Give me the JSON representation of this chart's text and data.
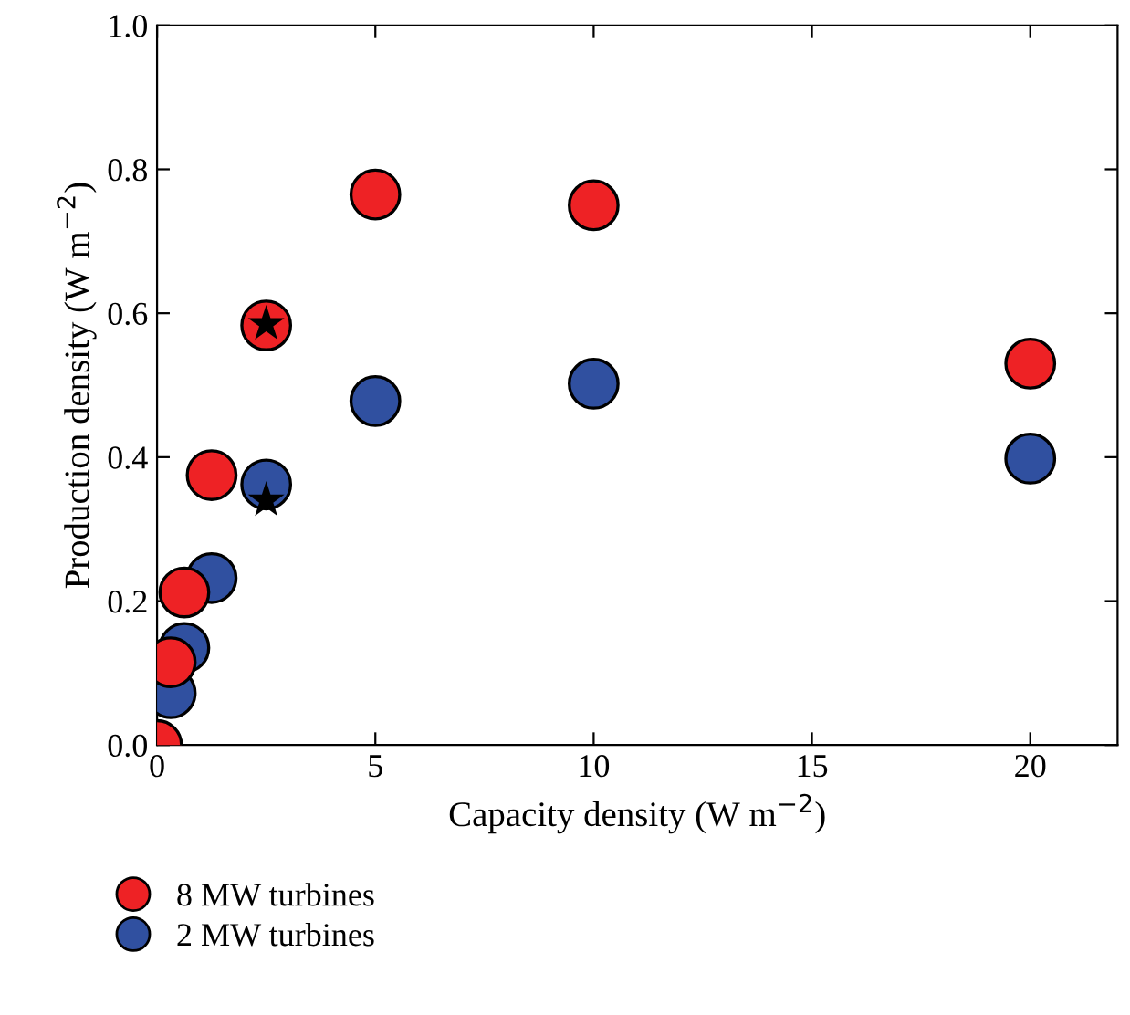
{
  "chart_data": {
    "type": "scatter",
    "xlabel": "Capacity density (W m$^{−2}$)",
    "ylabel": "Production density (W m$^{−2}$)",
    "xlim": [
      0,
      22
    ],
    "xticks": [
      0,
      5,
      10,
      15,
      20
    ],
    "ylim": [
      0,
      1.0
    ],
    "yticks": [
      {
        "value": 0,
        "label": "0.0"
      },
      {
        "value": 0.2,
        "label": "0.2"
      },
      {
        "value": 0.4,
        "label": "0.4"
      },
      {
        "value": 0.6,
        "label": "0.6"
      },
      {
        "value": 0.8,
        "label": "0.8"
      },
      {
        "value": 1.0,
        "label": "1.0"
      }
    ],
    "marker": "circle",
    "legend": "bottom left",
    "grid": false,
    "series": [
      {
        "name": "2 MW turbines",
        "color": "#3050a0",
        "x": [
          0.3125,
          0.625,
          1.25,
          2.5,
          5,
          10,
          20
        ],
        "values": [
          0.072,
          0.135,
          0.232,
          0.362,
          0.478,
          0.502,
          0.398
        ]
      },
      {
        "name": "8 MW turbines",
        "color": "#ee2225",
        "x": [
          0,
          0.3125,
          0.625,
          1.25,
          2.5,
          5,
          10,
          20
        ],
        "values": [
          0,
          0.115,
          0.212,
          0.375,
          0.583,
          0.765,
          0.75,
          0.53
        ]
      },
      {
        "color": "#000000",
        "marker": "star",
        "x": [
          2.5,
          2.5
        ],
        "values": [
          0.585,
          0.34
        ]
      }
    ]
  }
}
